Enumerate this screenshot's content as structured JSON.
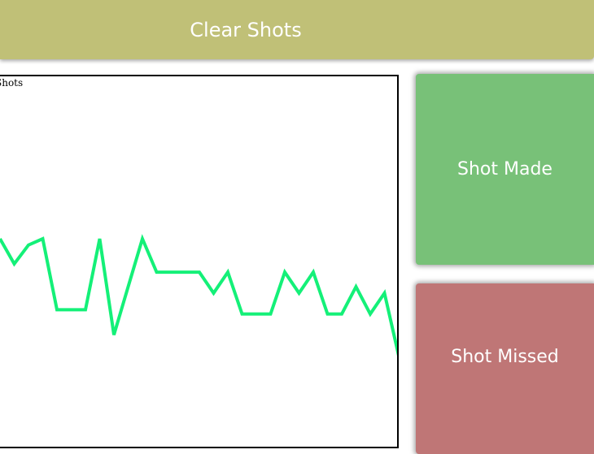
{
  "toolbar": {
    "clear_label": "Clear Shots"
  },
  "chart": {
    "label": "Shots"
  },
  "buttons": {
    "made_label": "Shot Made",
    "missed_label": "Shot Missed"
  },
  "colors": {
    "clear_button": "#c0c077",
    "made_button": "#78c178",
    "missed_button": "#bf7676",
    "line": "#14f078"
  },
  "chart_data": {
    "type": "line",
    "title": "",
    "xlabel": "",
    "ylabel": "",
    "grid": false,
    "series": [
      {
        "values": [
          56,
          44,
          53,
          56,
          22,
          22,
          22,
          56,
          10,
          33,
          56,
          40,
          40,
          40,
          40,
          30,
          40,
          20,
          20,
          20,
          40,
          30,
          40,
          20,
          20,
          33,
          20,
          30,
          0
        ]
      }
    ]
  }
}
